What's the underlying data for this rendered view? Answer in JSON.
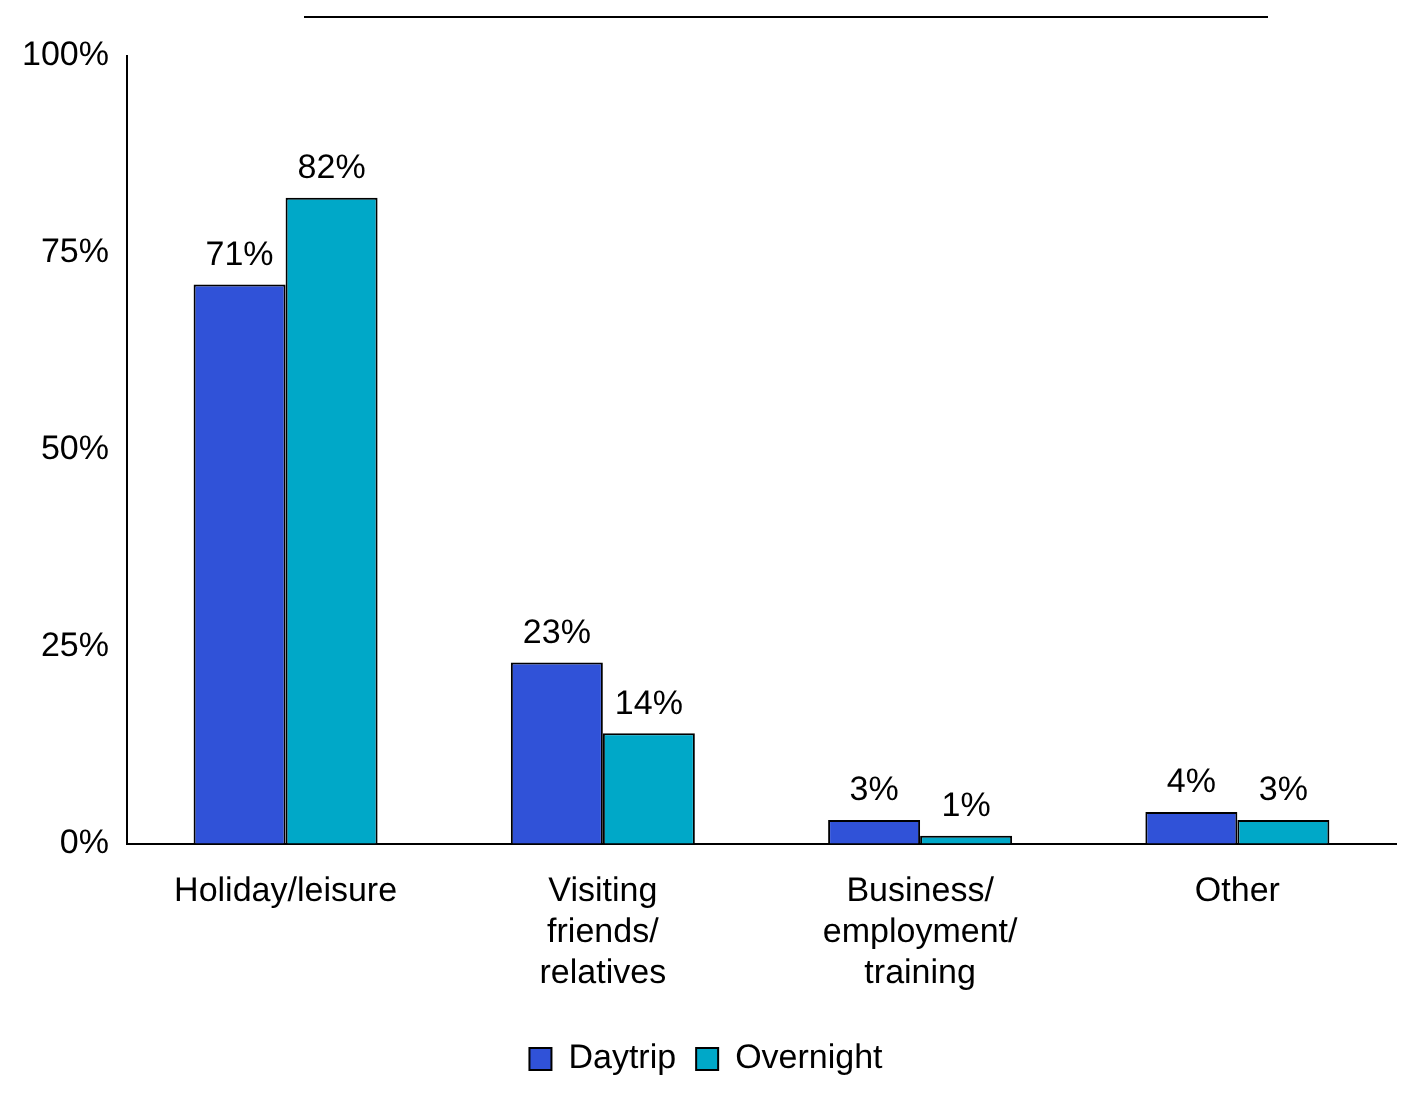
{
  "chart_data": {
    "type": "bar",
    "categories": [
      "Holiday/leisure",
      "Visiting friends/ relatives",
      "Business/ employment/ training",
      "Other"
    ],
    "series": [
      {
        "name": "Daytrip",
        "color": "#3052d8",
        "values": [
          71,
          23,
          3,
          4
        ],
        "value_labels": [
          "71%",
          "23%",
          "3%",
          "4%"
        ]
      },
      {
        "name": "Overnight",
        "color": "#00a8c8",
        "values": [
          82,
          14,
          1,
          3
        ],
        "value_labels": [
          "82%",
          "14%",
          "1%",
          "3%"
        ]
      }
    ],
    "ylim": [
      0,
      100
    ],
    "yticks": [
      {
        "value": 0,
        "label": "0%"
      },
      {
        "value": 25,
        "label": "25%"
      },
      {
        "value": 50,
        "label": "50%"
      },
      {
        "value": 75,
        "label": "75%"
      },
      {
        "value": 100,
        "label": "100%"
      }
    ],
    "grid": false,
    "legend": "bottom"
  }
}
